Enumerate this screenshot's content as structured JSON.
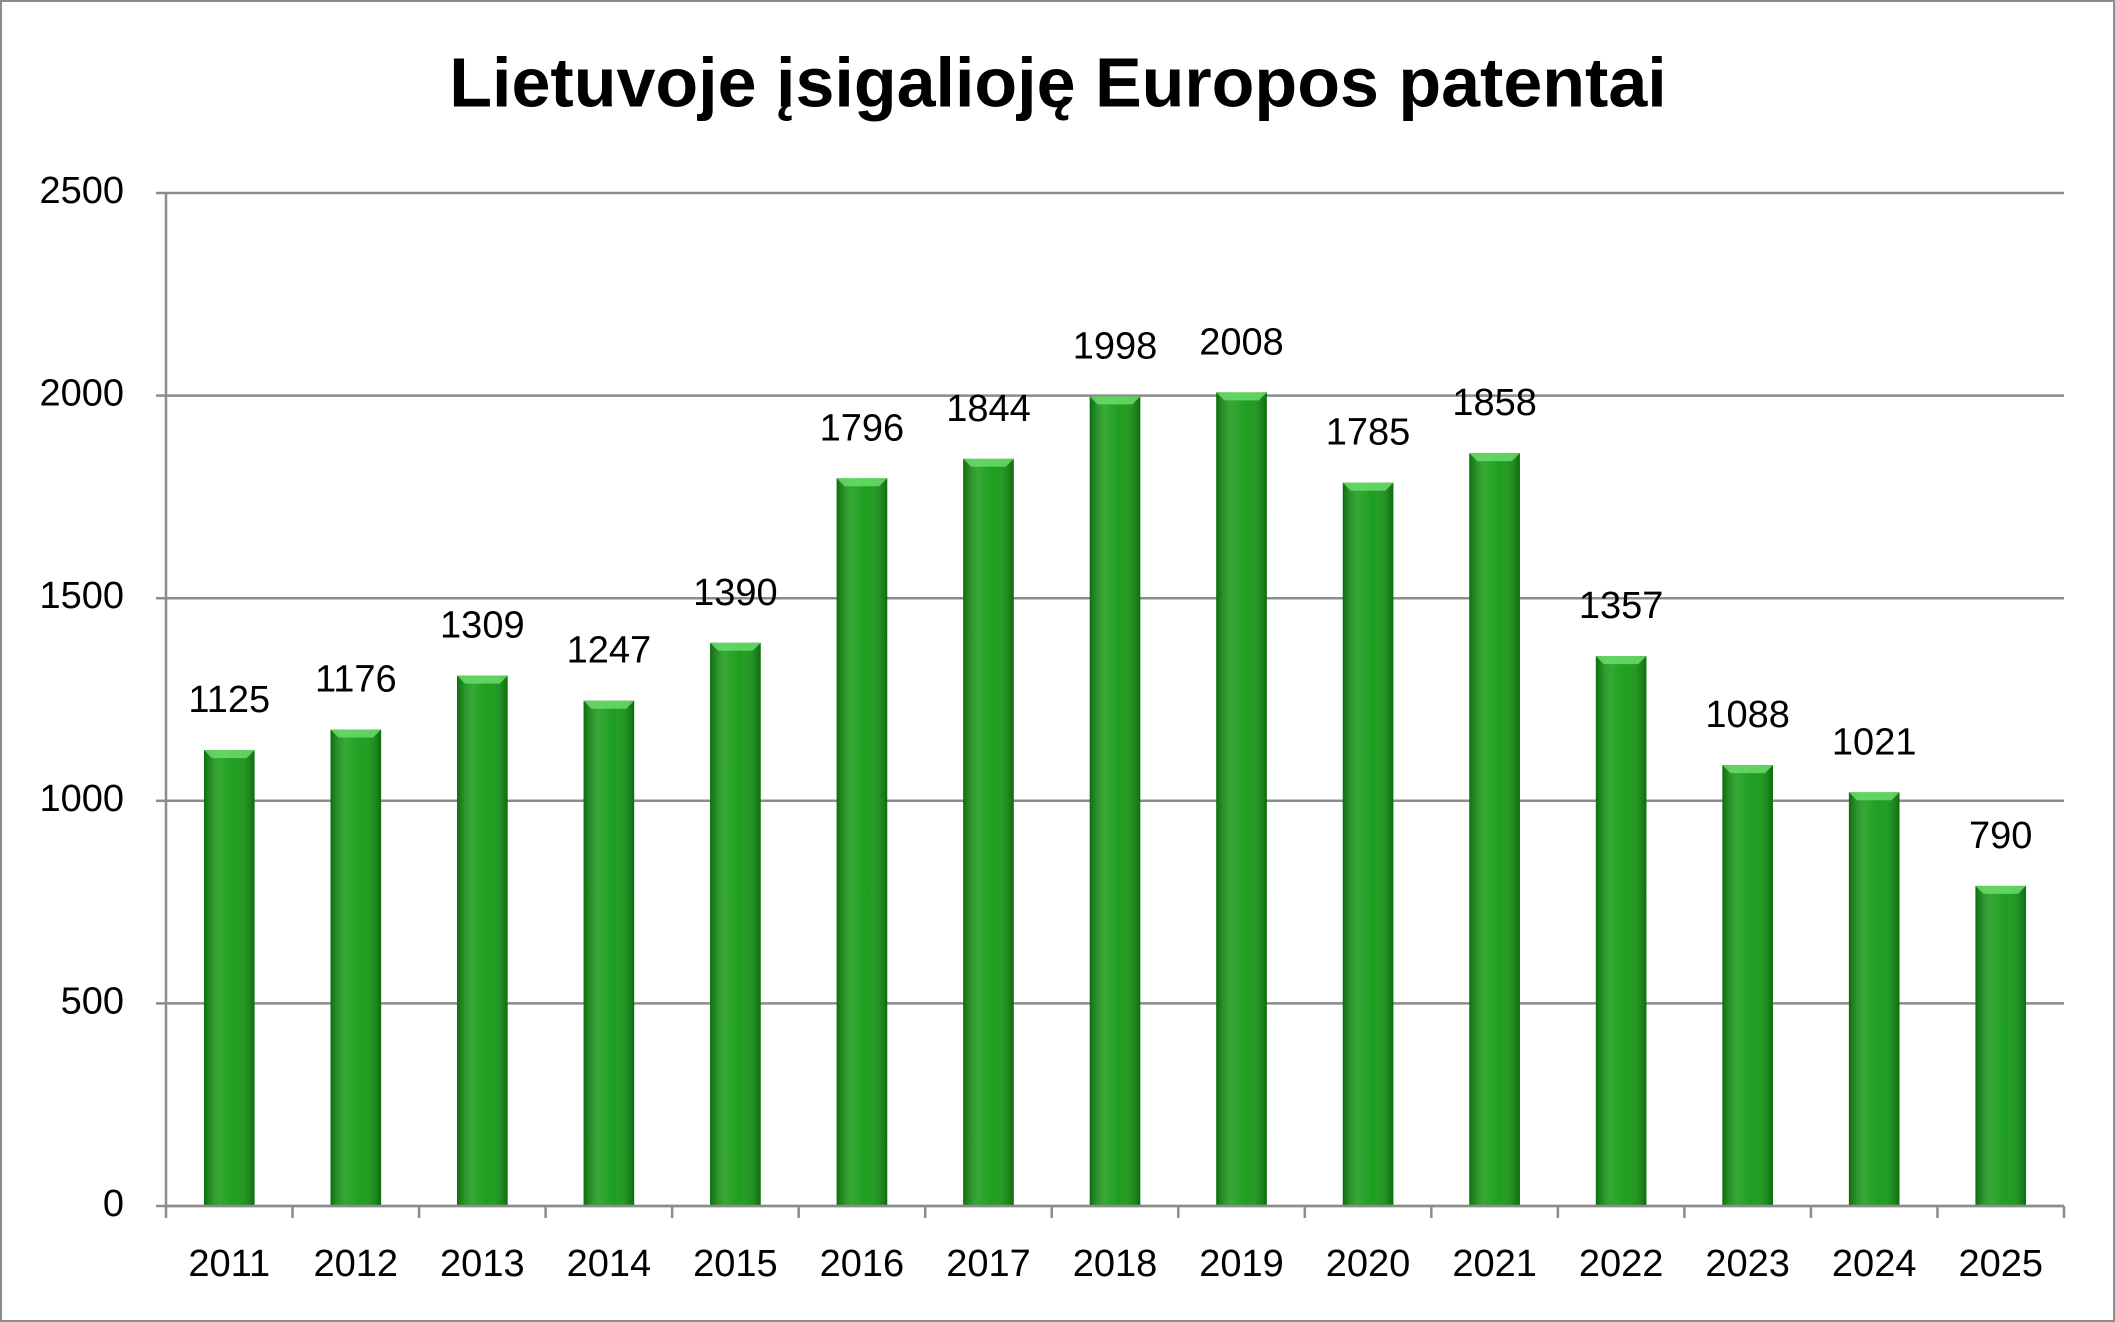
{
  "chart_data": {
    "type": "bar",
    "title": "Lietuvoje įsigalioję Europos patentai",
    "categories": [
      "2011",
      "2012",
      "2013",
      "2014",
      "2015",
      "2016",
      "2017",
      "2018",
      "2019",
      "2020",
      "2021",
      "2022",
      "2023",
      "2024",
      "2025"
    ],
    "values": [
      1125,
      1176,
      1309,
      1247,
      1390,
      1796,
      1844,
      1998,
      2008,
      1785,
      1858,
      1357,
      1088,
      1021,
      790
    ],
    "color": "#129912",
    "ylim": [
      0,
      2500
    ],
    "yticks": [
      0,
      500,
      1000,
      1500,
      2000,
      2500
    ],
    "grid": true
  }
}
